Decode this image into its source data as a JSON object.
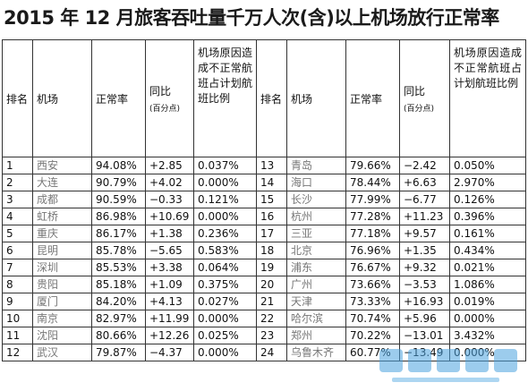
{
  "title": "2015 年 12 月旅客吞吐量千万人次(含)以上机场放行正常率",
  "headers": {
    "rank": "排名",
    "airport": "机场",
    "rate": "正常率",
    "yoy": "同比",
    "yoy_unit": "(百分点)",
    "reason": "机场原因造成不正常航班占计划航班比例"
  },
  "rows": [
    {
      "left": {
        "rank": "1",
        "airport": "西安",
        "rate": "94.08%",
        "yoy": "+2.85",
        "reason": "0.037%"
      },
      "right": {
        "rank": "13",
        "airport": "青岛",
        "rate": "79.66%",
        "yoy": "−2.42",
        "reason": "0.050%"
      }
    },
    {
      "left": {
        "rank": "2",
        "airport": "大连",
        "rate": "90.79%",
        "yoy": "+4.02",
        "reason": "0.000%"
      },
      "right": {
        "rank": "14",
        "airport": "海口",
        "rate": "78.44%",
        "yoy": "+6.63",
        "reason": "2.970%"
      }
    },
    {
      "left": {
        "rank": "3",
        "airport": "成都",
        "rate": "90.59%",
        "yoy": "−0.33",
        "reason": "0.121%"
      },
      "right": {
        "rank": "15",
        "airport": "长沙",
        "rate": "77.99%",
        "yoy": "−6.77",
        "reason": "0.126%"
      }
    },
    {
      "left": {
        "rank": "4",
        "airport": "虹桥",
        "rate": "86.98%",
        "yoy": "+10.69",
        "reason": "0.000%"
      },
      "right": {
        "rank": "16",
        "airport": "杭州",
        "rate": "77.28%",
        "yoy": "+11.23",
        "reason": "0.396%"
      }
    },
    {
      "left": {
        "rank": "5",
        "airport": "重庆",
        "rate": "86.17%",
        "yoy": "+1.38",
        "reason": "0.236%"
      },
      "right": {
        "rank": "17",
        "airport": "三亚",
        "rate": "77.18%",
        "yoy": "+9.57",
        "reason": "0.161%"
      }
    },
    {
      "left": {
        "rank": "6",
        "airport": "昆明",
        "rate": "85.78%",
        "yoy": "−5.65",
        "reason": "0.583%"
      },
      "right": {
        "rank": "18",
        "airport": "北京",
        "rate": "76.96%",
        "yoy": "+1.35",
        "reason": "0.434%"
      }
    },
    {
      "left": {
        "rank": "7",
        "airport": "深圳",
        "rate": "85.53%",
        "yoy": "+3.38",
        "reason": "0.064%"
      },
      "right": {
        "rank": "19",
        "airport": "浦东",
        "rate": "76.67%",
        "yoy": "+9.32",
        "reason": "0.021%"
      }
    },
    {
      "left": {
        "rank": "8",
        "airport": "贵阳",
        "rate": "85.18%",
        "yoy": "+1.09",
        "reason": "0.375%"
      },
      "right": {
        "rank": "20",
        "airport": "广州",
        "rate": "73.66%",
        "yoy": "−3.53",
        "reason": "1.086%"
      }
    },
    {
      "left": {
        "rank": "9",
        "airport": "厦门",
        "rate": "84.20%",
        "yoy": "+4.13",
        "reason": "0.027%"
      },
      "right": {
        "rank": "21",
        "airport": "天津",
        "rate": "73.33%",
        "yoy": "+16.93",
        "reason": "0.019%"
      }
    },
    {
      "left": {
        "rank": "10",
        "airport": "南京",
        "rate": "82.97%",
        "yoy": "+11.99",
        "reason": "0.000%"
      },
      "right": {
        "rank": "22",
        "airport": "哈尔滨",
        "rate": "70.74%",
        "yoy": "+5.96",
        "reason": "0.000%"
      }
    },
    {
      "left": {
        "rank": "11",
        "airport": "沈阳",
        "rate": "80.66%",
        "yoy": "+12.26",
        "reason": "0.025%"
      },
      "right": {
        "rank": "23",
        "airport": "郑州",
        "rate": "70.22%",
        "yoy": "−13.01",
        "reason": "3.432%"
      }
    },
    {
      "left": {
        "rank": "12",
        "airport": "武汉",
        "rate": "79.87%",
        "yoy": "−4.37",
        "reason": "0.000%"
      },
      "right": {
        "rank": "24",
        "airport": "乌鲁木齐",
        "rate": "60.77%",
        "yoy": "−13.49",
        "reason": "0.000%"
      }
    }
  ],
  "colors": {
    "border": "#333333",
    "airport_text": "#777777",
    "watermark": "#4aa3df"
  }
}
